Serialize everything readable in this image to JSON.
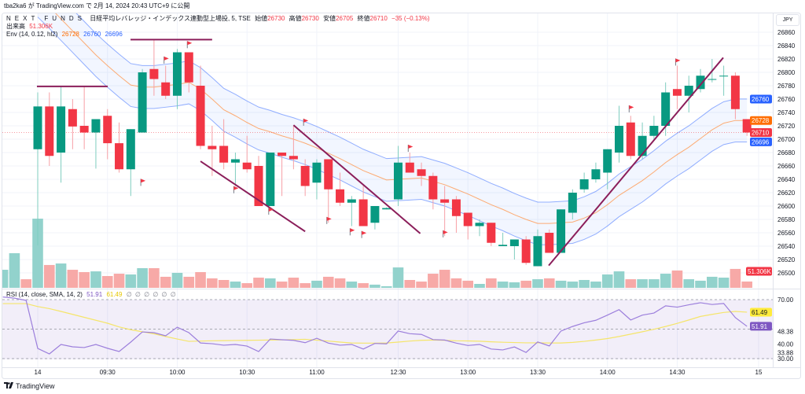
{
  "published": "tba2ka6 が TradingView.com で 2月 14, 2024 20:43 UTC+9 に公開",
  "currency": "JPY",
  "footer_logo": "TradingView",
  "legend": {
    "symbol": "NEXT FUNDS",
    "title": "日経平均レバレッジ・インデックス連動型上場投, 5, TSE",
    "open_label": "始値",
    "open": "26730",
    "high_label": "高値",
    "high": "26730",
    "low_label": "安値",
    "low": "26705",
    "close_label": "終値",
    "close": "26710",
    "change": "−35 (−0.13%)",
    "volume_label": "出来高",
    "volume": "51.306K",
    "env_label": "Env (14, 0.12, hl2)",
    "env_mid": "26728",
    "env_upper": "26760",
    "env_lower": "26696",
    "rsi_label": "RSI (14, close, SMA, 14, 2)",
    "rsi": "51.91",
    "rsi_ma": "61.49",
    "rsi_na": [
      "∅",
      "∅",
      "∅",
      "∅",
      "∅",
      "∅"
    ]
  },
  "badges": {
    "env_upper": "26760",
    "env_mid": "26728",
    "last_price": "26710",
    "env_lower": "26696",
    "volume": "51.306K",
    "rsi_ma": "61.49",
    "rsi": "51.91"
  },
  "colors": {
    "up": "#089981",
    "down": "#f23645",
    "vol_up": "#92d2cc",
    "vol_down": "#f7a9a7",
    "env_band": "#2962ff",
    "env_mid": "#ff9850",
    "rsi": "#9c7fdc",
    "rsi_ma": "#f5e56b",
    "drawing": "#8b1e5a",
    "flag": "#f23645"
  },
  "chart_data": {
    "type": "candlestick",
    "symbol": "NEXT FUNDS 日経平均レバレッジ・インデックス連動型上場投",
    "interval": "5",
    "price_ticks": [
      26860,
      26840,
      26820,
      26800,
      26780,
      26760,
      26740,
      26720,
      26700,
      26680,
      26660,
      26640,
      26620,
      26600,
      26580,
      26560,
      26540,
      26520,
      26500
    ],
    "price_range": [
      26480,
      26875
    ],
    "time_labels": [
      {
        "label": "14",
        "index": 1
      },
      {
        "label": "09:30",
        "index": 7
      },
      {
        "label": "10:00",
        "index": 13
      },
      {
        "label": "10:30",
        "index": 19
      },
      {
        "label": "11:00",
        "index": 25
      },
      {
        "label": "12:30",
        "index": 32
      },
      {
        "label": "13:00",
        "index": 38
      },
      {
        "label": "13:30",
        "index": 44
      },
      {
        "label": "14:00",
        "index": 50
      },
      {
        "label": "14:30",
        "index": 56
      },
      {
        "label": "15",
        "index": 63
      }
    ],
    "candles_ohlc": [
      [
        26685,
        26770,
        26541,
        26749
      ],
      [
        26749,
        26770,
        26660,
        26675
      ],
      [
        26680,
        26779,
        26635,
        26749
      ],
      [
        26745,
        26760,
        26685,
        26719
      ],
      [
        26720,
        26780,
        26685,
        26710
      ],
      [
        26710,
        26730,
        26656,
        26730
      ],
      [
        26735,
        26745,
        26670,
        26694
      ],
      [
        26694,
        26725,
        26650,
        26655
      ],
      [
        26655,
        26715,
        26615,
        26715
      ],
      [
        26710,
        26805,
        26710,
        26800
      ],
      [
        26805,
        26850,
        26765,
        26790
      ],
      [
        26785,
        26810,
        26760,
        26765
      ],
      [
        26765,
        26835,
        26745,
        26830
      ],
      [
        26830,
        26830,
        26770,
        26785
      ],
      [
        26780,
        26810,
        26685,
        26690
      ],
      [
        26690,
        26720,
        26645,
        26685
      ],
      [
        26690,
        26730,
        26655,
        26665
      ],
      [
        26665,
        26680,
        26630,
        26670
      ],
      [
        26665,
        26705,
        26650,
        26655
      ],
      [
        26660,
        26675,
        26600,
        26600
      ],
      [
        26600,
        26680,
        26600,
        26680
      ],
      [
        26680,
        26680,
        26615,
        26675
      ],
      [
        26675,
        26720,
        26655,
        26670
      ],
      [
        26660,
        26670,
        26615,
        26630
      ],
      [
        26635,
        26670,
        26610,
        26665
      ],
      [
        26670,
        26670,
        26575,
        26625
      ],
      [
        26625,
        26650,
        26600,
        26605
      ],
      [
        26605,
        26615,
        26570,
        26610
      ],
      [
        26610,
        26630,
        26570,
        26570
      ],
      [
        26575,
        26600,
        26565,
        26600
      ],
      [
        26595,
        26598,
        26595,
        26597
      ],
      [
        26610,
        26690,
        26600,
        26665
      ],
      [
        26665,
        26680,
        26650,
        26650
      ],
      [
        26655,
        26665,
        26630,
        26645
      ],
      [
        26645,
        26650,
        26595,
        26610
      ],
      [
        26610,
        26630,
        26555,
        26605
      ],
      [
        26610,
        26615,
        26560,
        26585
      ],
      [
        26590,
        26590,
        26550,
        26570
      ],
      [
        26570,
        26580,
        26555,
        26575
      ],
      [
        26575,
        26575,
        26540,
        26545
      ],
      [
        26540,
        26560,
        26540,
        26542
      ],
      [
        26540,
        26550,
        26520,
        26550
      ],
      [
        26550,
        26555,
        26512,
        26515
      ],
      [
        26510,
        26565,
        26510,
        26555
      ],
      [
        26560,
        26565,
        26530,
        26530
      ],
      [
        26530,
        26595,
        26530,
        26595
      ],
      [
        26590,
        26625,
        26580,
        26620
      ],
      [
        26625,
        26650,
        26620,
        26640
      ],
      [
        26640,
        26665,
        26635,
        26655
      ],
      [
        26650,
        26685,
        26625,
        26685
      ],
      [
        26680,
        26750,
        26665,
        26720
      ],
      [
        26725,
        26735,
        26670,
        26675
      ],
      [
        26675,
        26725,
        26670,
        26705
      ],
      [
        26705,
        26735,
        26700,
        26720
      ],
      [
        26720,
        26785,
        26705,
        26770
      ],
      [
        26775,
        26810,
        26745,
        26765
      ],
      [
        26765,
        26795,
        26740,
        26780
      ],
      [
        26775,
        26805,
        26770,
        26795
      ],
      [
        26790,
        26820,
        26785,
        26790
      ],
      [
        26795,
        26810,
        26765,
        26795
      ],
      [
        26795,
        26800,
        26730,
        26745
      ],
      [
        26730,
        26730,
        26705,
        26710
      ]
    ],
    "volume_k": [
      563,
      186,
      198,
      147,
      128,
      134,
      96,
      115,
      109,
      160,
      160,
      90,
      122,
      90,
      128,
      77,
      64,
      51,
      38,
      83,
      77,
      51,
      83,
      38,
      58,
      90,
      77,
      51,
      38,
      26,
      13,
      166,
      64,
      51,
      115,
      147,
      77,
      58,
      32,
      77,
      51,
      45,
      58,
      70,
      77,
      58,
      51,
      64,
      51,
      109,
      134,
      70,
      70,
      70,
      115,
      141,
      70,
      58,
      90,
      83,
      154,
      51.306
    ],
    "prev_volume_k": [
      {
        "value": 147,
        "up": true
      },
      {
        "value": 282,
        "up": true
      },
      {
        "value": 70,
        "up": false
      }
    ],
    "envelope": {
      "length": 14,
      "percent": 0.12,
      "source": "hl2",
      "middle": [
        26915,
        26898,
        26880,
        26862,
        26844,
        26826,
        26810,
        26795,
        26781,
        26778,
        26778,
        26780,
        26782,
        26785,
        26775,
        26760,
        26744,
        26735,
        26725,
        26716,
        26711,
        26705,
        26700,
        26694,
        26687,
        26679,
        26671,
        26662,
        26653,
        26646,
        26639,
        26640,
        26641,
        26642,
        26637,
        26632,
        26625,
        26618,
        26610,
        26602,
        26595,
        26587,
        26580,
        26574,
        26574,
        26575,
        26576,
        26582,
        26590,
        26602,
        26616,
        26627,
        26638,
        26651,
        26665,
        26677,
        26688,
        26701,
        26714,
        26724,
        26728,
        26728
      ]
    },
    "rsi": {
      "axis_labels": [
        "70.00",
        "48.38",
        "40.00",
        "33.88",
        "30.00"
      ],
      "levels": [
        70,
        50,
        30
      ],
      "prev": [
        71.8,
        71.0,
        69.5
      ],
      "prev_ma": [
        67.3,
        67.3,
        67.3
      ],
      "values": [
        36.9,
        33.2,
        39.6,
        38,
        37.5,
        39.6,
        37,
        34.8,
        41.2,
        48.1,
        47.6,
        45.5,
        51.3,
        47.6,
        40.6,
        40.1,
        39.1,
        39.6,
        38.5,
        34.8,
        43.3,
        42.8,
        42.4,
        40.8,
        43.8,
        40.5,
        39.1,
        39.6,
        36.5,
        40.3,
        40,
        48.7,
        46.9,
        46.4,
        42.9,
        42.6,
        40.5,
        38.9,
        39.6,
        36.5,
        35.9,
        37.9,
        34.2,
        41.3,
        38.6,
        48.7,
        51.8,
        54.3,
        56,
        59.5,
        63.2,
        56.2,
        59.5,
        60.9,
        65.8,
        64.9,
        66.5,
        67.9,
        66.7,
        67.4,
        57.8,
        51.91
      ],
      "ma": [
        65.3,
        63.9,
        62,
        60,
        58,
        56,
        54,
        51.5,
        49.6,
        48.2,
        46.8,
        45,
        43.3,
        41.7,
        41.9,
        42.1,
        42.2,
        42.3,
        42.4,
        42.5,
        42.6,
        42.7,
        42.9,
        43.1,
        42.5,
        41.9,
        41.2,
        40.6,
        40.5,
        40.5,
        40.6,
        41.2,
        41.9,
        42.4,
        42.6,
        42.4,
        42.1,
        42,
        41.8,
        41.4,
        41.1,
        40.9,
        40.7,
        40.7,
        40.6,
        40.6,
        41,
        41.7,
        42.6,
        43.6,
        45,
        46.6,
        48.2,
        49.9,
        51.8,
        53.9,
        56.2,
        58.6,
        60,
        61.3,
        62,
        61.49
      ]
    },
    "drawings": {
      "trendlines": [
        {
          "from": [
            0.93,
            26779
          ],
          "to": [
            7.02,
            26779
          ]
        },
        {
          "from": [
            8.98,
            26849
          ],
          "to": [
            16.0,
            26849
          ]
        },
        {
          "from": [
            15.0,
            26667
          ],
          "to": [
            24.0,
            26562
          ]
        },
        {
          "from": [
            23.0,
            26721
          ],
          "to": [
            33.9,
            26559
          ]
        },
        {
          "from": [
            44.95,
            26511
          ],
          "to": [
            59.96,
            26822
          ]
        }
      ],
      "flags": [
        {
          "index": 10,
          "price": 26636
        },
        {
          "index": 12,
          "price": 26819
        },
        {
          "index": 14,
          "price": 26842
        },
        {
          "index": 18,
          "price": 26625
        },
        {
          "index": 21,
          "price": 26593
        },
        {
          "index": 24,
          "price": 26726
        },
        {
          "index": 26,
          "price": 26579
        },
        {
          "index": 28,
          "price": 26562
        },
        {
          "index": 29,
          "price": 26558
        },
        {
          "index": 33,
          "price": 26687
        },
        {
          "index": 36,
          "price": 26559
        },
        {
          "index": 52,
          "price": 26746
        },
        {
          "index": 56,
          "price": 26816
        }
      ]
    },
    "last_price": 26710
  }
}
